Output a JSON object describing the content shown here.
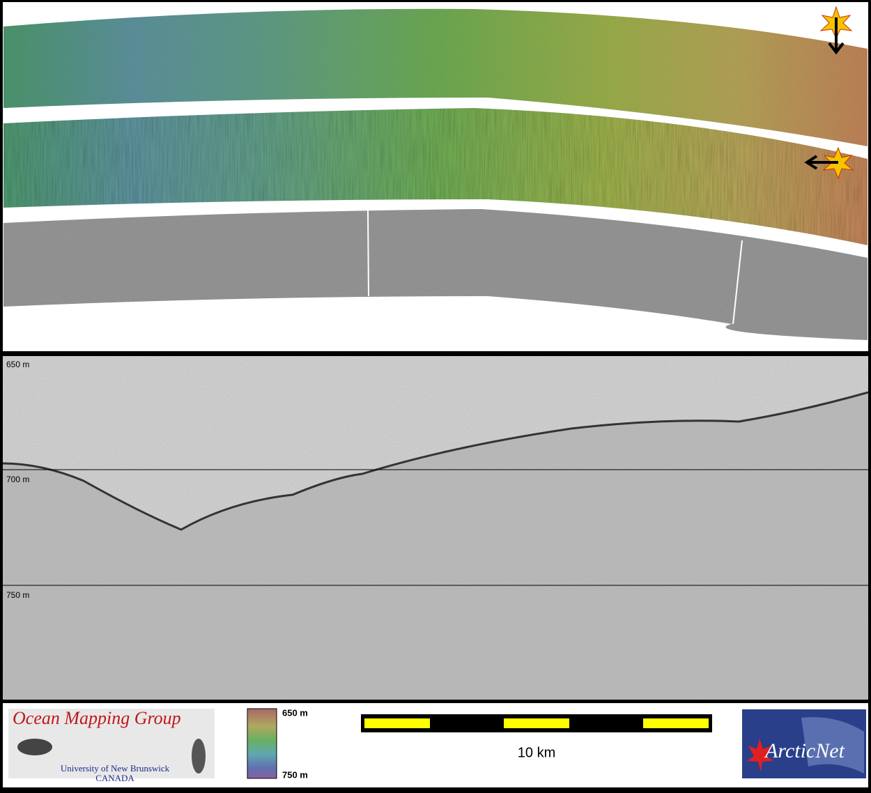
{
  "profile": {
    "depth_labels": [
      "650 m",
      "700 m",
      "750 m"
    ]
  },
  "footer": {
    "ocean_mapping_group": {
      "title": "Ocean Mapping Group",
      "university": "University of New Brunswick",
      "country": "CANADA"
    },
    "colorbar": {
      "top_label": "650 m",
      "bottom_label": "750 m"
    },
    "scale_bar": {
      "label": "10 km"
    },
    "arcticnet": {
      "label": "ArcticNet"
    }
  }
}
